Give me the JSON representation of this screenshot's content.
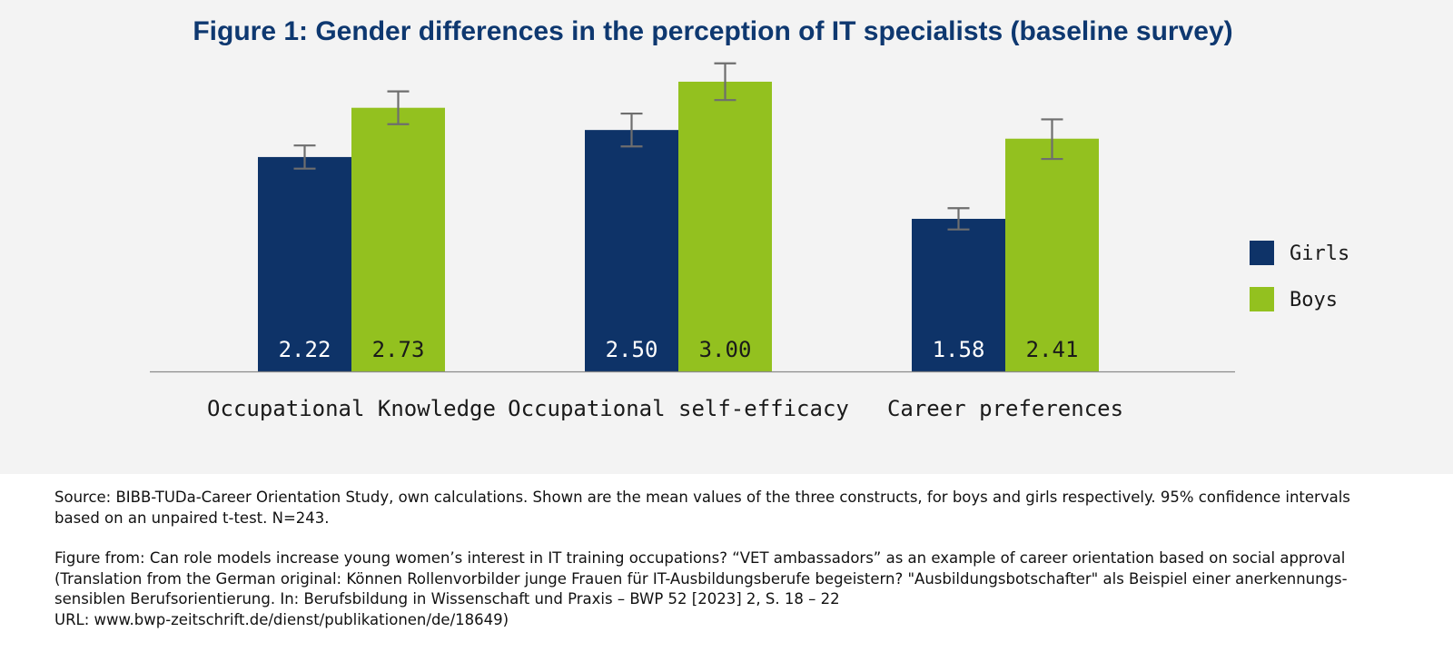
{
  "chart_data": {
    "type": "bar",
    "title": "Figure 1: Gender differences in the perception of IT specialists (baseline survey)",
    "categories": [
      "Occupational Knowledge",
      "Occupational self-efficacy",
      "Career preferences"
    ],
    "series": [
      {
        "name": "Girls",
        "color": "#0e3368",
        "values": [
          2.22,
          2.5,
          1.58
        ],
        "value_labels": [
          "2.22",
          "2.50",
          "1.58"
        ],
        "ci_low": [
          2.1,
          2.33,
          1.47
        ],
        "ci_high": [
          2.34,
          2.67,
          1.69
        ]
      },
      {
        "name": "Boys",
        "color": "#93c11f",
        "values": [
          2.73,
          3.0,
          2.41
        ],
        "value_labels": [
          "2.73",
          "3.00",
          "2.41"
        ],
        "ci_low": [
          2.56,
          2.81,
          2.2
        ],
        "ci_high": [
          2.9,
          3.19,
          2.61
        ]
      }
    ],
    "ylim": [
      0,
      3.47
    ],
    "xlabel": "",
    "ylabel": "",
    "grid": false,
    "legend": "right",
    "error_bar_color": "#6e6e6e"
  },
  "notes": {
    "source_lines": [
      "Source: BIBB-TUDa-Career Orientation Study, own calculations. Shown are the mean values of the three constructs, for boys and girls respectively. 95% confidence intervals",
      "based on an unpaired t-test. N=243."
    ],
    "figure_from_lines": [
      "Figure from: Can role models increase young women’s interest in IT training occupations? “VET ambassadors” as an example of career orientation based on social approval",
      "(Translation from the German original: Können Rollenvorbilder junge Frauen für IT-Ausbildungsberufe begeistern? \"Ausbildungsbotschafter\" als Beispiel einer anerkennungs-",
      "sensiblen Berufsorientierung. In: Berufsbildung in Wissenschaft und Praxis – BWP 52  [2023] 2, S. 18 – 22",
      "URL: www.bwp-zeitschrift.de/dienst/publikationen/de/18649)"
    ]
  }
}
